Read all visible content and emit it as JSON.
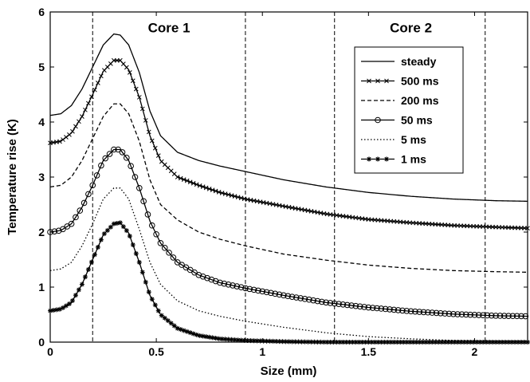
{
  "chart_data": {
    "type": "line",
    "xlabel": "Size (mm)",
    "ylabel": "Temperature rise (K)",
    "xlim": [
      0,
      2.25
    ],
    "ylim": [
      0,
      6
    ],
    "xticks": [
      0,
      0.5,
      1,
      1.5,
      2
    ],
    "xtick_labels": [
      "0",
      "0.5",
      "1",
      "1.5",
      "2"
    ],
    "yticks": [
      0,
      1,
      2,
      3,
      4,
      5,
      6
    ],
    "ytick_labels": [
      "0",
      "1",
      "2",
      "3",
      "4",
      "5",
      "6"
    ],
    "grid": false,
    "legend_position": "top-right",
    "vlines": [
      0.2,
      0.92,
      1.34,
      2.05
    ],
    "annotations": [
      {
        "text": "Core 1",
        "x": 0.56,
        "y": 5.72
      },
      {
        "text": "Core 2",
        "x": 1.7,
        "y": 5.72
      }
    ],
    "series": [
      {
        "name": "steady",
        "style": "solid",
        "marker": "none",
        "color": "#000000",
        "points": [
          [
            0,
            4.12
          ],
          [
            0.05,
            4.15
          ],
          [
            0.1,
            4.3
          ],
          [
            0.15,
            4.6
          ],
          [
            0.2,
            5.0
          ],
          [
            0.25,
            5.4
          ],
          [
            0.3,
            5.6
          ],
          [
            0.33,
            5.58
          ],
          [
            0.37,
            5.4
          ],
          [
            0.42,
            4.9
          ],
          [
            0.47,
            4.2
          ],
          [
            0.52,
            3.75
          ],
          [
            0.6,
            3.45
          ],
          [
            0.7,
            3.3
          ],
          [
            0.8,
            3.2
          ],
          [
            0.92,
            3.1
          ],
          [
            1.1,
            2.95
          ],
          [
            1.3,
            2.82
          ],
          [
            1.5,
            2.72
          ],
          [
            1.7,
            2.65
          ],
          [
            1.9,
            2.6
          ],
          [
            2.1,
            2.57
          ],
          [
            2.25,
            2.56
          ]
        ]
      },
      {
        "name": "500 ms",
        "style": "solid",
        "marker": "x",
        "color": "#000000",
        "points": [
          [
            0,
            3.62
          ],
          [
            0.05,
            3.65
          ],
          [
            0.1,
            3.8
          ],
          [
            0.15,
            4.1
          ],
          [
            0.2,
            4.5
          ],
          [
            0.25,
            4.92
          ],
          [
            0.3,
            5.12
          ],
          [
            0.33,
            5.12
          ],
          [
            0.37,
            4.95
          ],
          [
            0.42,
            4.45
          ],
          [
            0.47,
            3.75
          ],
          [
            0.52,
            3.3
          ],
          [
            0.6,
            3.0
          ],
          [
            0.7,
            2.85
          ],
          [
            0.8,
            2.72
          ],
          [
            0.92,
            2.6
          ],
          [
            1.1,
            2.47
          ],
          [
            1.3,
            2.33
          ],
          [
            1.5,
            2.23
          ],
          [
            1.7,
            2.17
          ],
          [
            1.9,
            2.12
          ],
          [
            2.1,
            2.09
          ],
          [
            2.25,
            2.07
          ]
        ]
      },
      {
        "name": "200 ms",
        "style": "dashed",
        "marker": "none",
        "color": "#000000",
        "points": [
          [
            0,
            2.82
          ],
          [
            0.05,
            2.85
          ],
          [
            0.1,
            3.0
          ],
          [
            0.15,
            3.3
          ],
          [
            0.2,
            3.7
          ],
          [
            0.25,
            4.1
          ],
          [
            0.3,
            4.33
          ],
          [
            0.33,
            4.33
          ],
          [
            0.37,
            4.15
          ],
          [
            0.42,
            3.65
          ],
          [
            0.47,
            2.95
          ],
          [
            0.52,
            2.5
          ],
          [
            0.6,
            2.22
          ],
          [
            0.7,
            2.0
          ],
          [
            0.8,
            1.87
          ],
          [
            0.92,
            1.75
          ],
          [
            1.1,
            1.6
          ],
          [
            1.3,
            1.49
          ],
          [
            1.5,
            1.4
          ],
          [
            1.7,
            1.34
          ],
          [
            1.9,
            1.3
          ],
          [
            2.1,
            1.28
          ],
          [
            2.25,
            1.27
          ]
        ]
      },
      {
        "name": "50 ms",
        "style": "solid",
        "marker": "o",
        "color": "#000000",
        "points": [
          [
            0,
            2.0
          ],
          [
            0.05,
            2.03
          ],
          [
            0.1,
            2.15
          ],
          [
            0.15,
            2.45
          ],
          [
            0.2,
            2.85
          ],
          [
            0.25,
            3.3
          ],
          [
            0.3,
            3.5
          ],
          [
            0.33,
            3.5
          ],
          [
            0.37,
            3.3
          ],
          [
            0.42,
            2.8
          ],
          [
            0.47,
            2.2
          ],
          [
            0.52,
            1.8
          ],
          [
            0.6,
            1.45
          ],
          [
            0.7,
            1.22
          ],
          [
            0.8,
            1.08
          ],
          [
            0.92,
            0.98
          ],
          [
            1.1,
            0.85
          ],
          [
            1.3,
            0.72
          ],
          [
            1.5,
            0.63
          ],
          [
            1.7,
            0.56
          ],
          [
            1.9,
            0.51
          ],
          [
            2.1,
            0.48
          ],
          [
            2.25,
            0.47
          ]
        ]
      },
      {
        "name": "5 ms",
        "style": "dotted",
        "marker": "none",
        "color": "#000000",
        "points": [
          [
            0,
            1.3
          ],
          [
            0.05,
            1.33
          ],
          [
            0.1,
            1.45
          ],
          [
            0.15,
            1.75
          ],
          [
            0.2,
            2.15
          ],
          [
            0.25,
            2.6
          ],
          [
            0.3,
            2.8
          ],
          [
            0.33,
            2.8
          ],
          [
            0.37,
            2.6
          ],
          [
            0.42,
            2.05
          ],
          [
            0.47,
            1.45
          ],
          [
            0.52,
            1.05
          ],
          [
            0.6,
            0.75
          ],
          [
            0.7,
            0.57
          ],
          [
            0.8,
            0.47
          ],
          [
            0.92,
            0.38
          ],
          [
            1.1,
            0.27
          ],
          [
            1.3,
            0.17
          ],
          [
            1.5,
            0.1
          ],
          [
            1.7,
            0.06
          ],
          [
            1.9,
            0.03
          ],
          [
            2.1,
            0.02
          ],
          [
            2.25,
            0.02
          ]
        ]
      },
      {
        "name": "1 ms",
        "style": "solid",
        "marker": "star",
        "color": "#000000",
        "points": [
          [
            0,
            0.57
          ],
          [
            0.05,
            0.6
          ],
          [
            0.1,
            0.72
          ],
          [
            0.15,
            1.05
          ],
          [
            0.2,
            1.5
          ],
          [
            0.25,
            1.95
          ],
          [
            0.3,
            2.15
          ],
          [
            0.33,
            2.17
          ],
          [
            0.37,
            1.98
          ],
          [
            0.42,
            1.45
          ],
          [
            0.47,
            0.85
          ],
          [
            0.52,
            0.5
          ],
          [
            0.6,
            0.25
          ],
          [
            0.7,
            0.12
          ],
          [
            0.8,
            0.06
          ],
          [
            0.92,
            0.03
          ],
          [
            1.1,
            0.01
          ],
          [
            1.3,
            0.0
          ],
          [
            1.5,
            0.0
          ],
          [
            1.7,
            0.0
          ],
          [
            1.9,
            0.0
          ],
          [
            2.1,
            0.0
          ],
          [
            2.25,
            0.0
          ]
        ]
      }
    ]
  }
}
